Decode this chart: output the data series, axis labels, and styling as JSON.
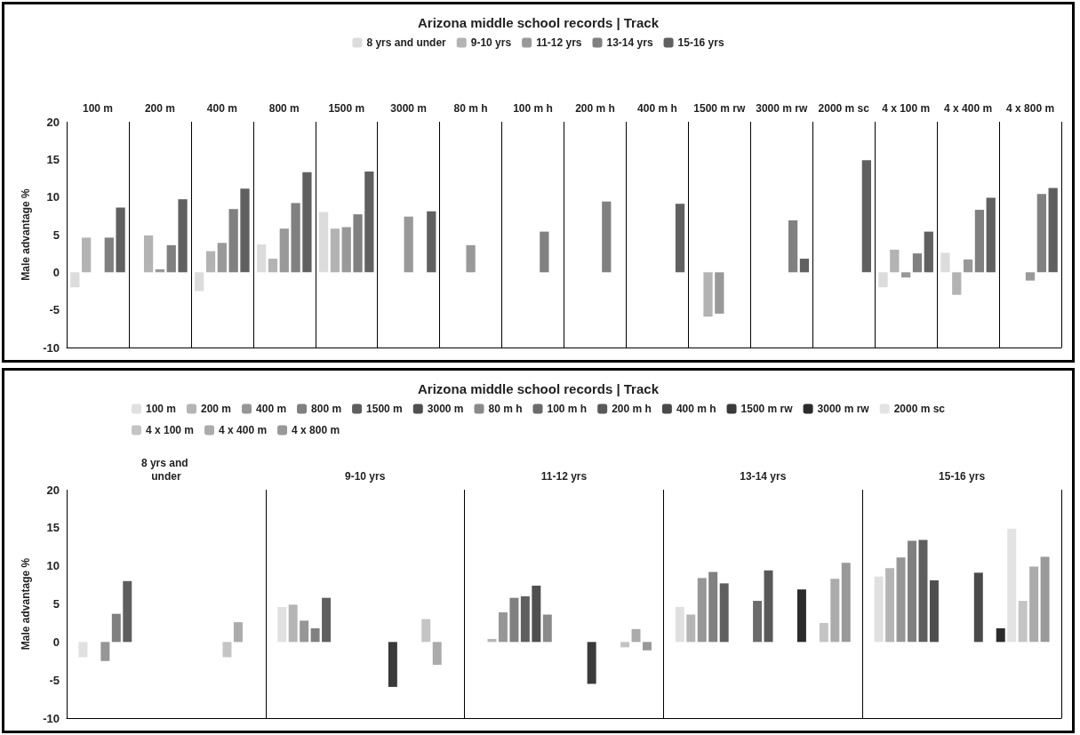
{
  "chart_data": [
    {
      "type": "bar",
      "title": "Arizona middle school records | Track",
      "ylabel": "Male advantage %",
      "categories": [
        "100 m",
        "200 m",
        "400 m",
        "800 m",
        "1500 m",
        "3000 m",
        "80 m h",
        "100 m h",
        "200 m h",
        "400 m h",
        "1500 m rw",
        "3000 m rw",
        "2000 m sc",
        "4 x 100 m",
        "4 x 400 m",
        "4 x 800 m"
      ],
      "series": [
        {
          "name": "8 yrs and under",
          "color": "#dcdcdc",
          "values": [
            -2.0,
            null,
            -2.5,
            3.7,
            8.0,
            null,
            null,
            null,
            null,
            null,
            null,
            null,
            null,
            -2.0,
            2.6,
            null
          ]
        },
        {
          "name": "9-10 yrs",
          "color": "#b3b3b3",
          "values": [
            4.6,
            4.9,
            2.8,
            1.8,
            5.8,
            null,
            null,
            null,
            null,
            null,
            -5.9,
            null,
            null,
            3.0,
            -3.0,
            null
          ]
        },
        {
          "name": "11-12 yrs",
          "color": "#999999",
          "values": [
            null,
            0.4,
            3.9,
            5.8,
            6.0,
            7.4,
            3.6,
            null,
            null,
            null,
            -5.5,
            null,
            null,
            -0.7,
            1.7,
            -1.1
          ]
        },
        {
          "name": "13-14 yrs",
          "color": "#808080",
          "values": [
            4.6,
            3.6,
            8.4,
            9.2,
            7.7,
            null,
            null,
            5.4,
            9.4,
            null,
            null,
            6.9,
            null,
            2.5,
            8.3,
            10.4
          ]
        },
        {
          "name": "15-16 yrs",
          "color": "#606060",
          "values": [
            8.6,
            9.7,
            11.1,
            13.3,
            13.4,
            8.1,
            null,
            null,
            null,
            9.1,
            null,
            1.8,
            14.9,
            5.4,
            9.9,
            11.2
          ]
        }
      ],
      "ylim": [
        -10,
        20
      ],
      "yticks": [
        -10,
        -5,
        0,
        5,
        10,
        15,
        20
      ],
      "grid": "x",
      "legend": "top"
    },
    {
      "type": "bar",
      "title": "Arizona middle school records | Track",
      "ylabel": "Male advantage %",
      "categories": [
        "8 yrs and under",
        "9-10 yrs",
        "11-12 yrs",
        "13-14 yrs",
        "15-16 yrs"
      ],
      "series": [
        {
          "name": "100 m",
          "color": "#e0e0e0",
          "values": [
            -2.0,
            4.6,
            null,
            4.6,
            8.6
          ]
        },
        {
          "name": "200 m",
          "color": "#b5b5b5",
          "values": [
            null,
            4.9,
            0.4,
            3.6,
            9.7
          ]
        },
        {
          "name": "400 m",
          "color": "#969696",
          "values": [
            -2.5,
            2.8,
            3.9,
            8.4,
            11.1
          ]
        },
        {
          "name": "800 m",
          "color": "#808080",
          "values": [
            3.7,
            1.8,
            5.8,
            9.2,
            13.3
          ]
        },
        {
          "name": "1500 m",
          "color": "#5f5f5f",
          "values": [
            8.0,
            5.8,
            6.0,
            7.7,
            13.4
          ]
        },
        {
          "name": "3000 m",
          "color": "#4f4f4f",
          "values": [
            null,
            null,
            7.4,
            null,
            8.1
          ]
        },
        {
          "name": "80 m h",
          "color": "#8a8a8a",
          "values": [
            null,
            null,
            3.6,
            null,
            null
          ]
        },
        {
          "name": "100 m h",
          "color": "#6b6b6b",
          "values": [
            null,
            null,
            null,
            5.4,
            null
          ]
        },
        {
          "name": "200 m h",
          "color": "#595959",
          "values": [
            null,
            null,
            null,
            9.4,
            null
          ]
        },
        {
          "name": "400 m h",
          "color": "#4a4a4a",
          "values": [
            null,
            null,
            null,
            null,
            9.1
          ]
        },
        {
          "name": "1500 m rw",
          "color": "#3a3a3a",
          "values": [
            null,
            -5.9,
            -5.5,
            null,
            null
          ]
        },
        {
          "name": "3000 m rw",
          "color": "#2b2b2b",
          "values": [
            null,
            null,
            null,
            6.9,
            1.8
          ]
        },
        {
          "name": "2000 m sc",
          "color": "#e3e3e3",
          "values": [
            null,
            null,
            null,
            null,
            14.9
          ]
        },
        {
          "name": "4 x 100 m",
          "color": "#c4c4c4",
          "values": [
            -2.0,
            3.0,
            -0.7,
            2.5,
            5.4
          ]
        },
        {
          "name": "4 x 400 m",
          "color": "#ababab",
          "values": [
            2.6,
            -3.0,
            1.7,
            8.3,
            9.9
          ]
        },
        {
          "name": "4 x 800 m",
          "color": "#999999",
          "values": [
            null,
            null,
            -1.1,
            10.4,
            11.2
          ]
        }
      ],
      "ylim": [
        -10,
        20
      ],
      "yticks": [
        -10,
        -5,
        0,
        5,
        10,
        15,
        20
      ],
      "grid": "x",
      "legend": "top"
    }
  ]
}
